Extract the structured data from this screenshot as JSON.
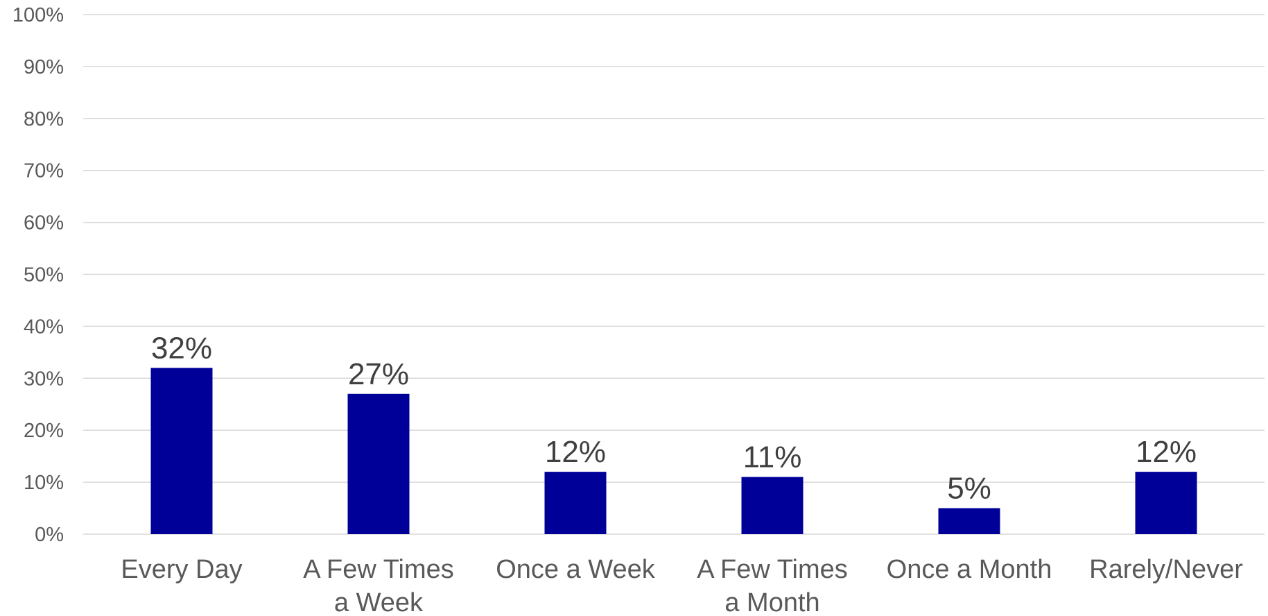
{
  "chart_data": {
    "type": "bar",
    "categories": [
      [
        "Every Day"
      ],
      [
        "A Few Times",
        "a Week"
      ],
      [
        "Once a Week"
      ],
      [
        "A Few Times",
        "a Month"
      ],
      [
        "Once a Month"
      ],
      [
        "Rarely/Never"
      ]
    ],
    "values": [
      32,
      27,
      12,
      11,
      5,
      12
    ],
    "data_labels": [
      "32%",
      "27%",
      "12%",
      "11%",
      "5%",
      "12%"
    ],
    "y_ticks": [
      0,
      10,
      20,
      30,
      40,
      50,
      60,
      70,
      80,
      90,
      100
    ],
    "y_tick_labels": [
      "0%",
      "10%",
      "20%",
      "30%",
      "40%",
      "50%",
      "60%",
      "70%",
      "80%",
      "90%",
      "100%"
    ],
    "ylim": [
      0,
      100
    ],
    "title": "",
    "xlabel": "",
    "ylabel": "",
    "grid": true,
    "legend": "none",
    "bar_color": "#000099"
  }
}
